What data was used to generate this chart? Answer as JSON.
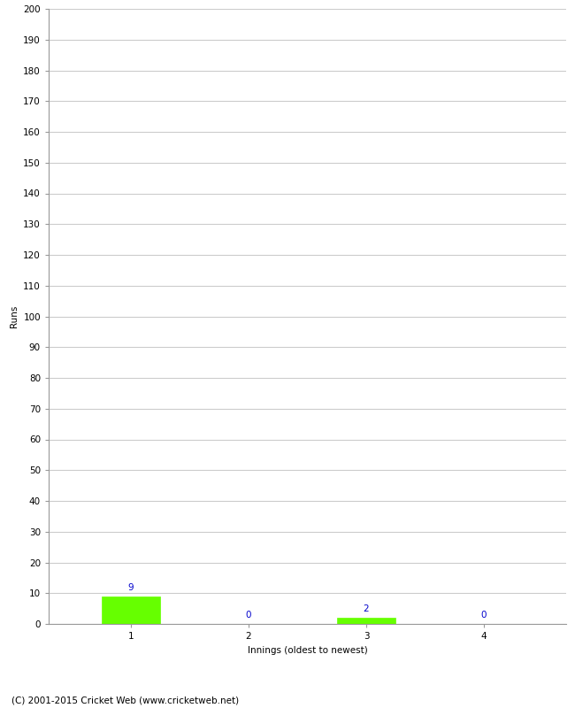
{
  "xlabel": "Innings (oldest to newest)",
  "ylabel": "Runs",
  "categories": [
    1,
    2,
    3,
    4
  ],
  "values": [
    9,
    0,
    2,
    0
  ],
  "bar_color": "#66ff00",
  "bar_edge_color": "#66ff00",
  "value_label_color": "#0000cc",
  "ylim": [
    0,
    200
  ],
  "ytick_step": 10,
  "background_color": "#ffffff",
  "footer_text": "(C) 2001-2015 Cricket Web (www.cricketweb.net)",
  "grid_color": "#cccccc",
  "axis_color": "#999999",
  "value_fontsize": 7.5,
  "ylabel_fontsize": 7.5,
  "xlabel_fontsize": 7.5,
  "footer_fontsize": 7.5,
  "tick_label_fontsize": 7.5
}
